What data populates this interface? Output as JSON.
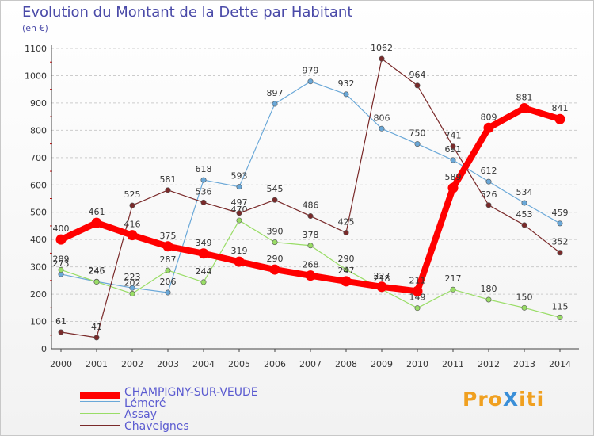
{
  "title": "Evolution du Montant de la Dette par Habitant",
  "unit": "(en €)",
  "brand": "ProXiti",
  "colors": {
    "axis": "#444444",
    "grid": "#cccccc",
    "text": "#333333",
    "tick": "#cc0000"
  },
  "chart_data": {
    "type": "line",
    "title": "Evolution du Montant de la Dette par Habitant",
    "ylabel": "(en €)",
    "xlabel": "",
    "x": [
      "2000",
      "2001",
      "2002",
      "2003",
      "2004",
      "2005",
      "2006",
      "2007",
      "2008",
      "2009",
      "2010",
      "2011",
      "2012",
      "2013",
      "2014"
    ],
    "ylim": [
      0,
      1100
    ],
    "yticks": [
      0,
      100,
      200,
      300,
      400,
      500,
      600,
      700,
      800,
      900,
      1000,
      1100
    ],
    "grid": "horizontal dashed",
    "legend": "bottom-left",
    "series": [
      {
        "name": "CHAMPIGNY-SUR-VEUDE",
        "color": "#ff0000",
        "start": 0,
        "values": [
          400,
          461,
          416,
          375,
          349,
          319,
          290,
          268,
          247,
          227,
          211,
          589,
          809,
          881,
          841
        ]
      },
      {
        "name": "Lémeré",
        "color": "#6aa8d8",
        "start": 0,
        "values": [
          273,
          246,
          223,
          206,
          618,
          593,
          897,
          979,
          932,
          806,
          750,
          691,
          612,
          534,
          459
        ]
      },
      {
        "name": "Assay",
        "color": "#99dd66",
        "start": 0,
        "values": [
          289,
          245,
          202,
          287,
          244,
          470,
          390,
          378,
          290,
          218,
          149,
          217,
          180,
          150,
          115
        ]
      },
      {
        "name": "Chaveignes",
        "color": "#7a2a2a",
        "start": 0,
        "values": [
          61,
          41,
          525,
          581,
          536,
          497,
          545,
          486,
          425,
          1062,
          964,
          741,
          526,
          453,
          352
        ]
      }
    ]
  }
}
